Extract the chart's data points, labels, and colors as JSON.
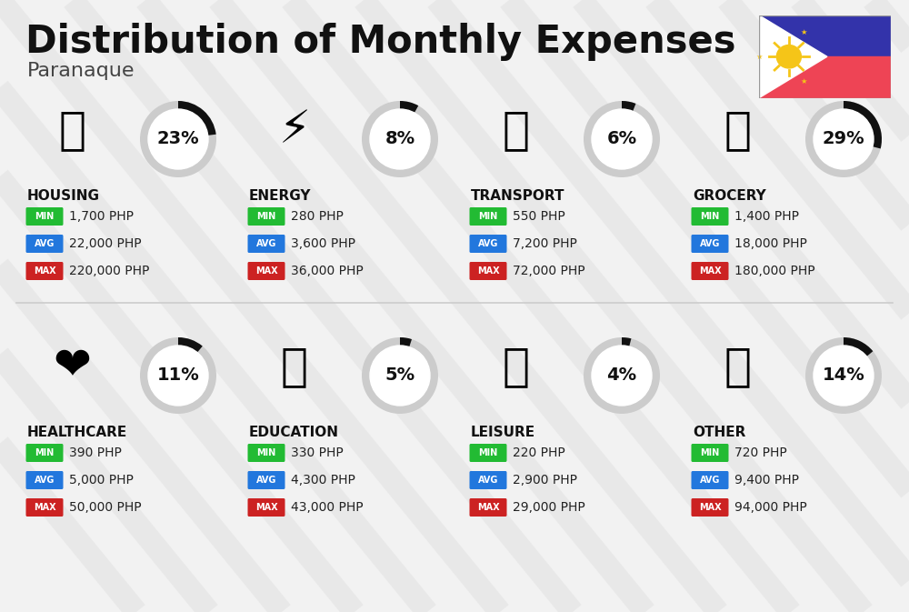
{
  "title": "Distribution of Monthly Expenses",
  "subtitle": "Paranaque",
  "bg_color": "#f2f2f2",
  "categories": [
    {
      "name": "HOUSING",
      "pct": 23,
      "min_val": "1,700 PHP",
      "avg_val": "22,000 PHP",
      "max_val": "220,000 PHP",
      "col": 0,
      "row": 0
    },
    {
      "name": "ENERGY",
      "pct": 8,
      "min_val": "280 PHP",
      "avg_val": "3,600 PHP",
      "max_val": "36,000 PHP",
      "col": 1,
      "row": 0
    },
    {
      "name": "TRANSPORT",
      "pct": 6,
      "min_val": "550 PHP",
      "avg_val": "7,200 PHP",
      "max_val": "72,000 PHP",
      "col": 2,
      "row": 0
    },
    {
      "name": "GROCERY",
      "pct": 29,
      "min_val": "1,400 PHP",
      "avg_val": "18,000 PHP",
      "max_val": "180,000 PHP",
      "col": 3,
      "row": 0
    },
    {
      "name": "HEALTHCARE",
      "pct": 11,
      "min_val": "390 PHP",
      "avg_val": "5,000 PHP",
      "max_val": "50,000 PHP",
      "col": 0,
      "row": 1
    },
    {
      "name": "EDUCATION",
      "pct": 5,
      "min_val": "330 PHP",
      "avg_val": "4,300 PHP",
      "max_val": "43,000 PHP",
      "col": 1,
      "row": 1
    },
    {
      "name": "LEISURE",
      "pct": 4,
      "min_val": "220 PHP",
      "avg_val": "2,900 PHP",
      "max_val": "29,000 PHP",
      "col": 2,
      "row": 1
    },
    {
      "name": "OTHER",
      "pct": 14,
      "min_val": "720 PHP",
      "avg_val": "9,400 PHP",
      "max_val": "94,000 PHP",
      "col": 3,
      "row": 1
    }
  ],
  "min_color": "#22bb33",
  "avg_color": "#2277dd",
  "max_color": "#cc2222",
  "ring_filled_color": "#111111",
  "ring_empty_color": "#cccccc",
  "stripe_color": "#e0e0e0",
  "divider_color": "#cccccc",
  "title_fontsize": 30,
  "subtitle_fontsize": 16,
  "cat_fontsize": 11,
  "val_fontsize": 10,
  "badge_fontsize": 7,
  "pct_fontsize": 14,
  "flag_blue": "#3333aa",
  "flag_red": "#ee4455",
  "flag_white": "#ffffff",
  "flag_yellow": "#f5c518"
}
